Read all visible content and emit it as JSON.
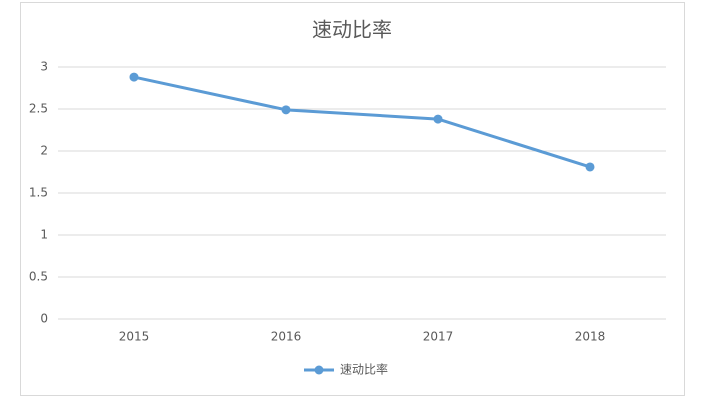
{
  "chart_data": {
    "type": "line",
    "title": "速动比率",
    "categories": [
      "2015",
      "2016",
      "2017",
      "2018"
    ],
    "series": [
      {
        "name": "速动比率",
        "color": "#5b9bd5",
        "values": [
          2.88,
          2.49,
          2.38,
          1.81
        ]
      }
    ],
    "ylim": [
      0,
      3
    ],
    "yticks": [
      0,
      0.5,
      1,
      1.5,
      2,
      2.5,
      3
    ],
    "grid": true,
    "legend": "bottom"
  }
}
